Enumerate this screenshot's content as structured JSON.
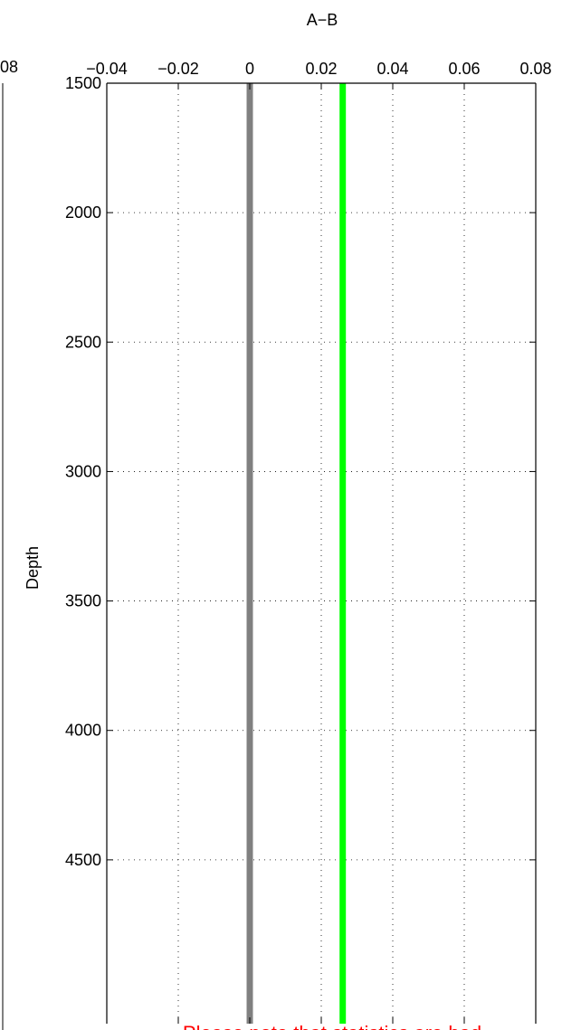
{
  "chart_data": {
    "type": "line",
    "title": "A−B",
    "xlabel": "",
    "ylabel": "Depth",
    "xlim": [
      -0.04,
      0.08
    ],
    "ylim": [
      1500,
      5100
    ],
    "y_reversed": true,
    "x_axis_position": "top",
    "grid": true,
    "x_ticks": [
      -0.04,
      -0.02,
      0,
      0.02,
      0.04,
      0.06,
      0.08
    ],
    "x_tick_labels": [
      "−0.04",
      "−0.02",
      "0",
      "0.02",
      "0.04",
      "0.06",
      "0.08"
    ],
    "y_ticks": [
      1500,
      2000,
      2500,
      3000,
      3500,
      4000,
      4500
    ],
    "y_tick_labels": [
      "1500",
      "2000",
      "2500",
      "3000",
      "3500",
      "4000",
      "4500"
    ],
    "series": [
      {
        "color": "#808080",
        "x": [
          0,
          0
        ],
        "y": [
          1500,
          5100
        ]
      },
      {
        "color": "#00ff00",
        "x": [
          0.026,
          0.026
        ],
        "y": [
          1500,
          5100
        ]
      }
    ],
    "annotation": "Please note that statistics are bad",
    "annotation_color": "#ff0000"
  },
  "partial_left_panel": {
    "tick_label": "08"
  }
}
